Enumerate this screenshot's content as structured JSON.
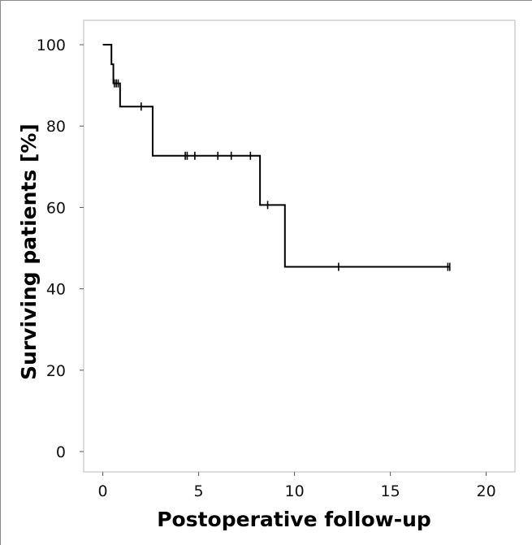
{
  "chart_data": {
    "type": "line",
    "subtype": "kaplan-meier",
    "title": "",
    "xlabel": "Postoperative follow-up",
    "ylabel": "Surviving patients [%]",
    "xlim": [
      -1,
      21.5
    ],
    "ylim": [
      -5,
      106
    ],
    "xticks": [
      0,
      5,
      10,
      15,
      20
    ],
    "yticks": [
      0,
      20,
      40,
      60,
      80,
      100
    ],
    "grid": false,
    "legend": "none",
    "line_color": "#000000",
    "series": [
      {
        "steps": [
          {
            "x": 0.0,
            "y": 100
          },
          {
            "x": 0.45,
            "y": 95.2
          },
          {
            "x": 0.55,
            "y": 90.5
          },
          {
            "x": 0.9,
            "y": 84.8
          },
          {
            "x": 2.6,
            "y": 72.7
          },
          {
            "x": 8.2,
            "y": 60.6
          },
          {
            "x": 9.5,
            "y": 45.4
          },
          {
            "x": 18.1,
            "y": 45.4
          }
        ],
        "censored": [
          {
            "x": 0.6,
            "y": 90.5
          },
          {
            "x": 0.7,
            "y": 90.5
          },
          {
            "x": 0.8,
            "y": 90.5
          },
          {
            "x": 2.0,
            "y": 84.8
          },
          {
            "x": 4.3,
            "y": 72.7
          },
          {
            "x": 4.4,
            "y": 72.7
          },
          {
            "x": 4.8,
            "y": 72.7
          },
          {
            "x": 6.0,
            "y": 72.7
          },
          {
            "x": 6.7,
            "y": 72.7
          },
          {
            "x": 7.7,
            "y": 72.7
          },
          {
            "x": 8.6,
            "y": 60.6
          },
          {
            "x": 12.3,
            "y": 45.4
          },
          {
            "x": 18.0,
            "y": 45.4
          },
          {
            "x": 18.1,
            "y": 45.4
          }
        ]
      }
    ]
  }
}
